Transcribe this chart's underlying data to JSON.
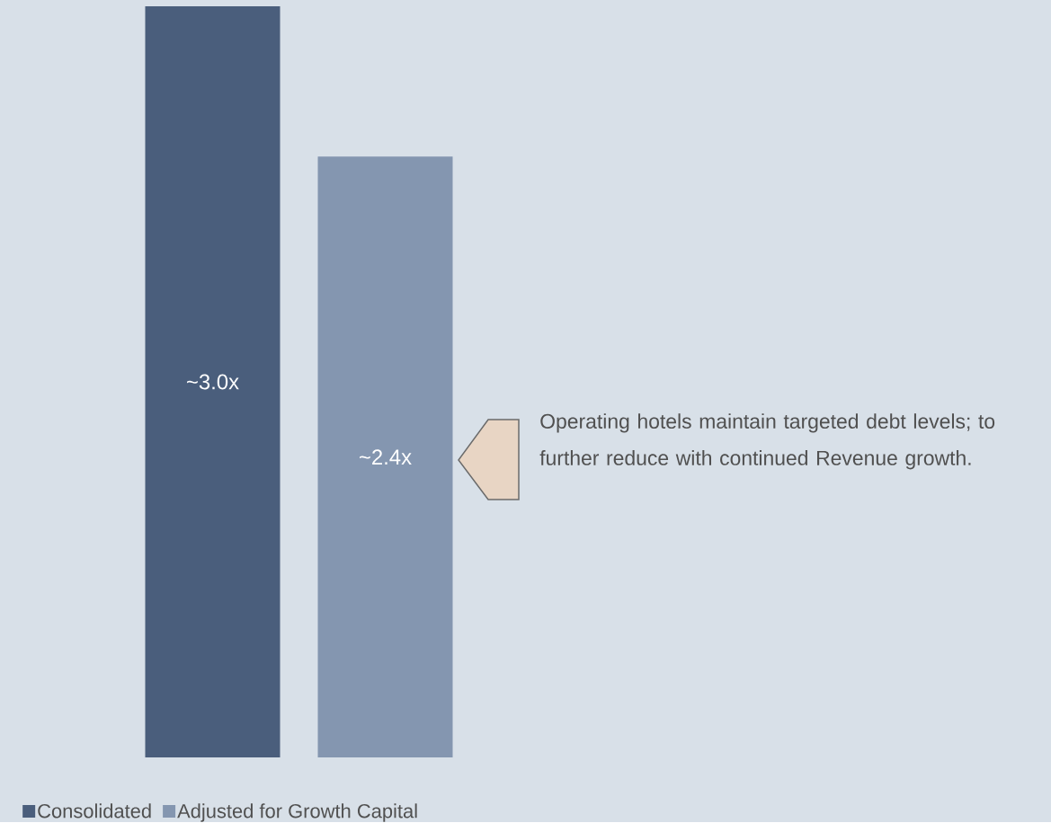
{
  "chart_data": {
    "type": "bar",
    "categories": [
      null
    ],
    "series": [
      {
        "name": "Consolidated",
        "color": "#4a5e7c",
        "values": [
          3.0
        ],
        "value_labels": [
          "~3.0x"
        ]
      },
      {
        "name": "Adjusted for Growth Capital",
        "color": "#8496b0",
        "values": [
          2.4
        ],
        "value_labels": [
          "~2.4x"
        ]
      }
    ],
    "legend": "bottom left",
    "annotations": [
      "Operating hotels maintain targeted debt levels; to further reduce with continued Revenue growth."
    ]
  }
}
